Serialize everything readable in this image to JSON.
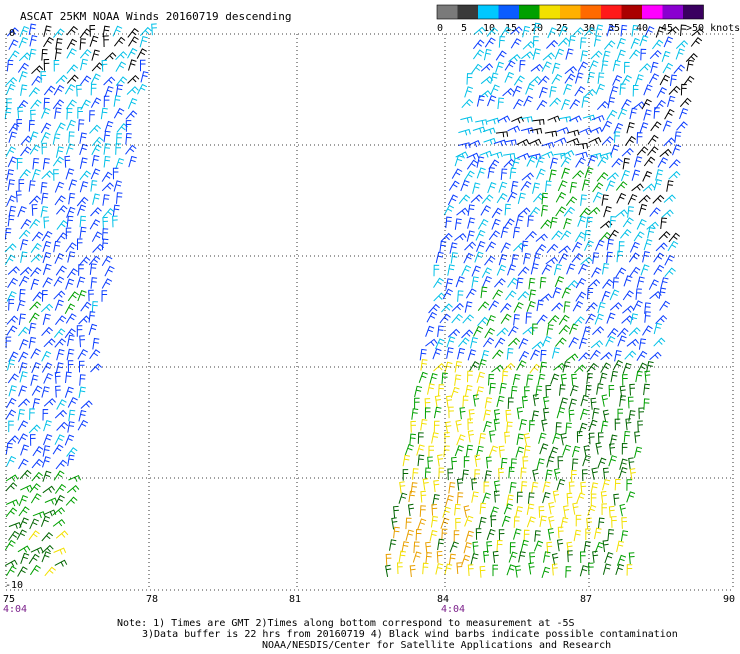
{
  "title": "ASCAT 25KM NOAA Winds 20160719 descending",
  "legend": {
    "labels": [
      "0",
      "5",
      "10",
      "15",
      "20",
      "25",
      "30",
      "35",
      "40",
      "45",
      ">50 knots"
    ],
    "colors": [
      "#7a7a7a",
      "#3a3a3a",
      "#00c8ff",
      "#0a5cff",
      "#00a000",
      "#f2e000",
      "#ffb000",
      "#ff6a00",
      "#ff1a1a",
      "#aa0000",
      "#ff00ff",
      "#8a00d0",
      "#3a0060"
    ]
  },
  "x_ticks": [
    "75",
    "78",
    "81",
    "84",
    "87",
    "90"
  ],
  "y_ticks": [
    "0",
    "-10"
  ],
  "pass_times": [
    "4:04",
    "4:04"
  ],
  "notes": {
    "line1": "Note: 1) Times are GMT 2)Times along bottom correspond to measurement at -5S",
    "line2": "3)Data buffer is 22 hrs from 20160719 4) Black wind barbs indicate possible contamination",
    "line3": "NOAA/NESDIS/Center for Satellite Applications and Research"
  },
  "wind_colors": {
    "contaminated": "#000000",
    "light": "#00c0e8",
    "moderate": "#0a3cff",
    "fresh": "#00a000",
    "strong": "#006400",
    "gale": "#f2e000",
    "gale2": "#e8a000"
  }
}
